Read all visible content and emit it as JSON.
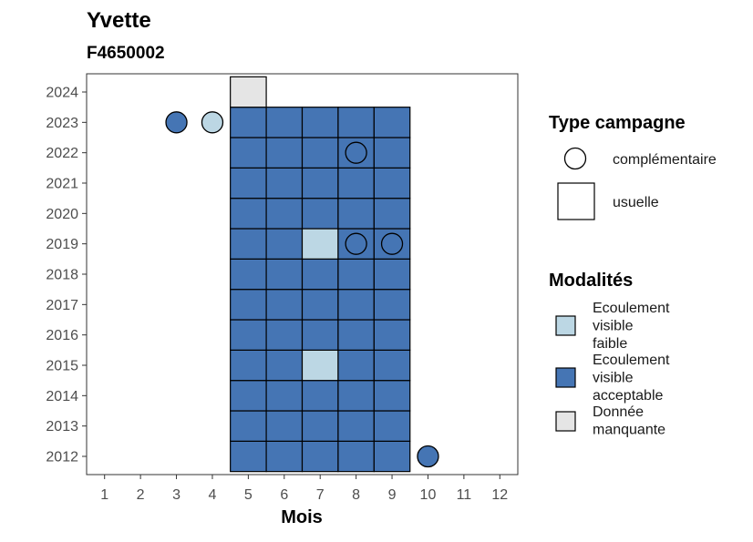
{
  "chart_data": {
    "type": "heatmap",
    "title": "Yvette",
    "subtitle": "F4650002",
    "xlabel": "Mois",
    "ylabel": "",
    "x_ticks": [
      1,
      2,
      3,
      4,
      5,
      6,
      7,
      8,
      9,
      10,
      11,
      12
    ],
    "y_ticks": [
      2012,
      2013,
      2014,
      2015,
      2016,
      2017,
      2018,
      2019,
      2020,
      2021,
      2022,
      2023,
      2024
    ],
    "xlim": [
      0.5,
      12.5
    ],
    "ylim": [
      2011.4,
      2024.6
    ],
    "grid": false,
    "colors": {
      "faible": "#bcd7e4",
      "acceptable": "#4575b4",
      "manquante": "#e5e5e5"
    },
    "usuelle": {
      "months": [
        5,
        6,
        7,
        8,
        9
      ],
      "years": [
        2012,
        2013,
        2014,
        2015,
        2016,
        2017,
        2018,
        2019,
        2020,
        2021,
        2022,
        2023
      ],
      "default": "acceptable",
      "exceptions": [
        {
          "month": 7,
          "year": 2019,
          "modalite": "faible"
        },
        {
          "month": 7,
          "year": 2015,
          "modalite": "faible"
        },
        {
          "month": 5,
          "year": 2024,
          "modalite": "manquante"
        }
      ]
    },
    "complementaire": [
      {
        "month": 3,
        "year": 2023,
        "modalite": "acceptable"
      },
      {
        "month": 4,
        "year": 2023,
        "modalite": "faible"
      },
      {
        "month": 8,
        "year": 2022,
        "modalite": "acceptable"
      },
      {
        "month": 8,
        "year": 2019,
        "modalite": "acceptable"
      },
      {
        "month": 9,
        "year": 2019,
        "modalite": "acceptable"
      },
      {
        "month": 10,
        "year": 2012,
        "modalite": "acceptable"
      }
    ],
    "legend": {
      "placement": "right",
      "type_title": "Type campagne",
      "type_entries": [
        "complémentaire",
        "usuelle"
      ],
      "modalites_title": "Modalités",
      "modalites_entries": [
        {
          "key": "faible",
          "lines": [
            "Ecoulement",
            "visible",
            "faible"
          ]
        },
        {
          "key": "acceptable",
          "lines": [
            "Ecoulement",
            "visible",
            "acceptable"
          ]
        },
        {
          "key": "manquante",
          "lines": [
            "Donnée",
            "manquante"
          ]
        }
      ]
    }
  }
}
